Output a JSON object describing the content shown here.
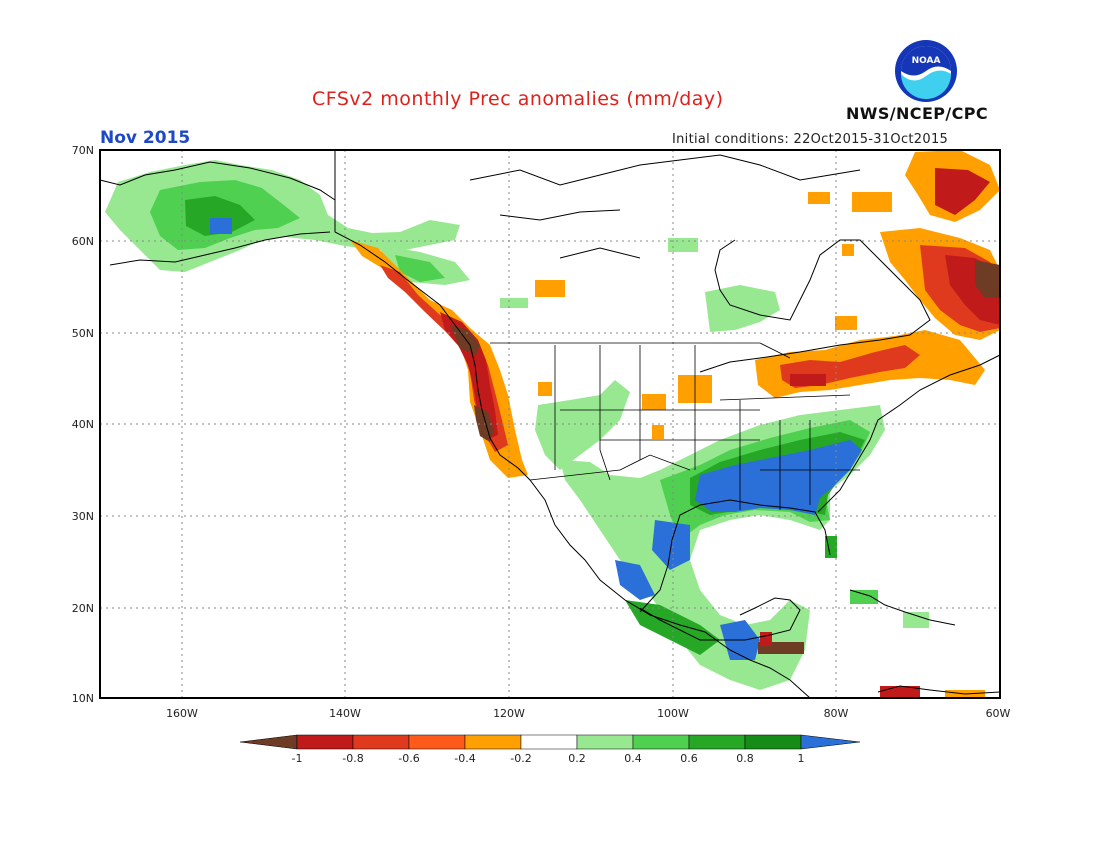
{
  "header": {
    "title": "CFSv2 monthly Prec anomalies (mm/day)",
    "month": "Nov 2015",
    "init": "Initial conditions: 22Oct2015-31Oct2015",
    "agency": "NWS/NCEP/CPC",
    "logo_text": "NOAA"
  },
  "map": {
    "lat_labels": [
      "70N",
      "60N",
      "50N",
      "40N",
      "30N",
      "20N",
      "10N"
    ],
    "lon_labels": [
      "160W",
      "140W",
      "120W",
      "100W",
      "80W",
      "60W"
    ]
  },
  "colorbar": {
    "labels": [
      "-1",
      "-0.8",
      "-0.6",
      "-0.4",
      "-0.2",
      "0.2",
      "0.4",
      "0.6",
      "0.8",
      "1"
    ],
    "colors": [
      "#6e3b24",
      "#c01a1a",
      "#e03a1e",
      "#ff5a1a",
      "#ffa000",
      "#ffffff",
      "#98e892",
      "#50d050",
      "#26a726",
      "#168c16",
      "#2b6fd9"
    ]
  }
}
